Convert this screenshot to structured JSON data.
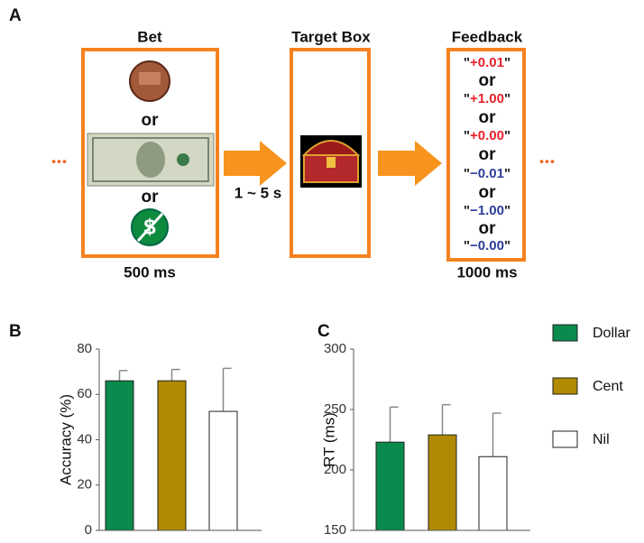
{
  "panels": [
    "A",
    "B",
    "C"
  ],
  "diagram": {
    "bet": {
      "title": "Bet",
      "separators": [
        "or",
        "or"
      ],
      "duration": "500 ms"
    },
    "interval": "1 ~ 5 s",
    "target": {
      "title": "Target Box"
    },
    "feedback": {
      "title": "Feedback",
      "quote": "\"",
      "duration": "1000 ms",
      "items": [
        {
          "text": "+0.01",
          "color": "#e8202a"
        },
        {
          "text": "+1.00",
          "color": "#e8202a"
        },
        {
          "text": "+0.00",
          "color": "#e8202a"
        },
        {
          "text": "−0.01",
          "color": "#2b3d9a"
        },
        {
          "text": "−1.00",
          "color": "#2b3d9a"
        },
        {
          "text": "−0.00",
          "color": "#2b3d9a"
        }
      ],
      "separators": [
        "or",
        "or",
        "or",
        "or",
        "or"
      ]
    },
    "ellipsis": "•••"
  },
  "legend": [
    {
      "name": "Dollar",
      "color": "#0a8a4c"
    },
    {
      "name": "Cent",
      "color": "#b08a00"
    },
    {
      "name": "Nil",
      "color": "#ffffff"
    }
  ],
  "chart_data": [
    {
      "type": "bar",
      "ylabel": "Accuracy (%)",
      "ylim": [
        0,
        80
      ],
      "yticks": [
        0,
        20,
        40,
        60,
        80
      ],
      "values": [
        66,
        66,
        52.5
      ],
      "errors": [
        4.5,
        5,
        19
      ]
    },
    {
      "type": "bar",
      "ylabel": "RT (ms)",
      "ylim": [
        150,
        300
      ],
      "yticks": [
        150,
        200,
        250,
        300
      ],
      "values": [
        223,
        229,
        211
      ],
      "errors": [
        29,
        25,
        36
      ]
    }
  ]
}
